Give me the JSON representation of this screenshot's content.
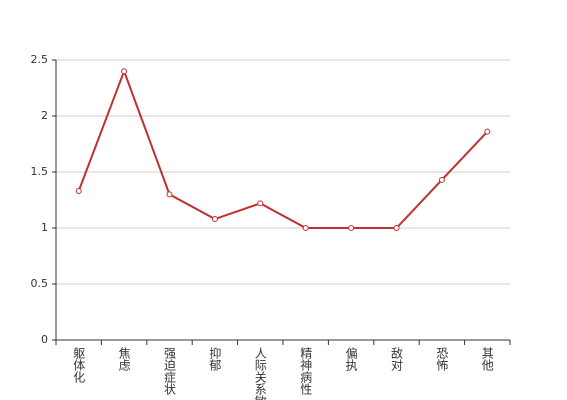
{
  "chart_data": {
    "type": "line",
    "categories": [
      "躯体化",
      "焦虑",
      "强迫症状",
      "抑郁",
      "人际关系敏感",
      "精神病性",
      "偏执",
      "敌对",
      "恐怖",
      "其他"
    ],
    "values": [
      1.33,
      2.4,
      1.3,
      1.08,
      1.22,
      1.0,
      1.0,
      1.0,
      1.43,
      1.86
    ],
    "color": "#bf3030",
    "ylim": [
      0,
      2.5
    ],
    "yticks": [
      0,
      0.5,
      1,
      1.5,
      2,
      2.5
    ],
    "grid": true
  }
}
